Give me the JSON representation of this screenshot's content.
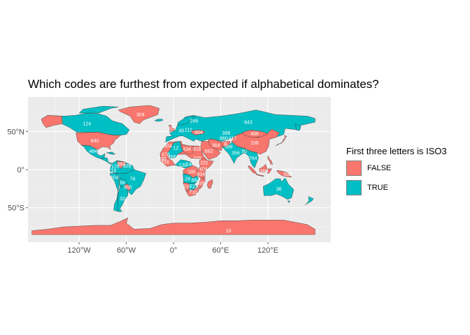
{
  "chart_data": {
    "type": "map",
    "title": "Which codes are furthest from expected if alphabetical dominates?",
    "xlabel": "",
    "ylabel": "",
    "x_ticks": [
      "120°W",
      "60°W",
      "0°",
      "60°E",
      "120°E"
    ],
    "x_tick_values": [
      -120,
      -60,
      0,
      60,
      120
    ],
    "y_ticks": [
      "50°N",
      "0°",
      "50°S"
    ],
    "y_tick_values": [
      50,
      0,
      -50
    ],
    "xlim": [
      -185,
      200
    ],
    "ylim": [
      -95,
      95
    ],
    "grid": true,
    "legend": {
      "title": "First three letters is ISO3",
      "position": "right",
      "entries": [
        {
          "label": "FALSE",
          "color": "#F8766D"
        },
        {
          "label": "TRUE",
          "color": "#00BFC4"
        }
      ]
    },
    "regions": [
      {
        "name": "Canada",
        "code": "124",
        "value": true,
        "lon": -110,
        "lat": 60
      },
      {
        "name": "Greenland",
        "code": "304",
        "value": false,
        "lon": -42,
        "lat": 72
      },
      {
        "name": "United States",
        "code": "840",
        "value": false,
        "lon": -100,
        "lat": 38
      },
      {
        "name": "Mexico",
        "code": "484",
        "value": true,
        "lon": -102,
        "lat": 24
      },
      {
        "name": "Venezuela",
        "code": "862",
        "value": false,
        "lon": -66,
        "lat": 7
      },
      {
        "name": "Colombia",
        "code": "170",
        "value": true,
        "lon": -74,
        "lat": 4
      },
      {
        "name": "Ecuador",
        "code": "218",
        "value": true,
        "lon": -78,
        "lat": -1
      },
      {
        "name": "Peru",
        "code": "604",
        "value": true,
        "lon": -75,
        "lat": -10
      },
      {
        "name": "Bolivia",
        "code": "68",
        "value": true,
        "lon": -65,
        "lat": -17
      },
      {
        "name": "Brazil",
        "code": "76",
        "value": true,
        "lon": -52,
        "lat": -12
      },
      {
        "name": "Paraguay",
        "code": "600",
        "value": false,
        "lon": -58,
        "lat": -23
      },
      {
        "name": "Guyana",
        "code": "328",
        "value": true,
        "lon": -59,
        "lat": 5
      },
      {
        "name": "Argentina",
        "code": "32",
        "value": true,
        "lon": -65,
        "lat": -38
      },
      {
        "name": "Russia",
        "code": "643",
        "value": true,
        "lon": 95,
        "lat": 62
      },
      {
        "name": "Finland",
        "code": "246",
        "value": true,
        "lon": 26,
        "lat": 64
      },
      {
        "name": "United Kingdom",
        "code": "826",
        "value": false,
        "lon": -2,
        "lat": 54
      },
      {
        "name": "Germany",
        "code": "40",
        "value": true,
        "lon": 10,
        "lat": 51
      },
      {
        "name": "Ukraine",
        "code": "804",
        "value": false,
        "lon": 32,
        "lat": 49
      },
      {
        "name": "Poland",
        "code": "112",
        "value": true,
        "lon": 19,
        "lat": 52
      },
      {
        "name": "Kazakhstan",
        "code": "398",
        "value": true,
        "lon": 67,
        "lat": 48
      },
      {
        "name": "Mongolia",
        "code": "496",
        "value": false,
        "lon": 103,
        "lat": 47
      },
      {
        "name": "China",
        "code": "156",
        "value": false,
        "lon": 103,
        "lat": 35
      },
      {
        "name": "Uzbekistan",
        "code": "860",
        "value": true,
        "lon": 64,
        "lat": 41
      },
      {
        "name": "Kyrgyzstan",
        "code": "417",
        "value": true,
        "lon": 75,
        "lat": 41
      },
      {
        "name": "Afghanistan",
        "code": "4",
        "value": false,
        "lon": 66,
        "lat": 34
      },
      {
        "name": "Iran",
        "code": "364",
        "value": false,
        "lon": 54,
        "lat": 32
      },
      {
        "name": "Saudi Arabia",
        "code": "682",
        "value": false,
        "lon": 45,
        "lat": 24
      },
      {
        "name": "Pakistan",
        "code": "586",
        "value": true,
        "lon": 70,
        "lat": 30
      },
      {
        "name": "India",
        "code": "356",
        "value": true,
        "lon": 79,
        "lat": 22
      },
      {
        "name": "Bangladesh",
        "code": "50",
        "value": true,
        "lon": 90,
        "lat": 24
      },
      {
        "name": "Thailand",
        "code": "764",
        "value": true,
        "lon": 101,
        "lat": 15
      },
      {
        "name": "Morocco",
        "code": "504",
        "value": false,
        "lon": -7,
        "lat": 31
      },
      {
        "name": "Algeria",
        "code": "12",
        "value": true,
        "lon": 3,
        "lat": 28
      },
      {
        "name": "Libya",
        "code": "434",
        "value": false,
        "lon": 17,
        "lat": 27
      },
      {
        "name": "Egypt",
        "code": "818",
        "value": false,
        "lon": 30,
        "lat": 27
      },
      {
        "name": "Mauritania",
        "code": "478",
        "value": false,
        "lon": -10,
        "lat": 20
      },
      {
        "name": "Mali",
        "code": "466",
        "value": true,
        "lon": -2,
        "lat": 17
      },
      {
        "name": "Senegal",
        "code": "686",
        "value": false,
        "lon": -14,
        "lat": 14
      },
      {
        "name": "Guinea",
        "code": "324",
        "value": false,
        "lon": -11,
        "lat": 10
      },
      {
        "name": "Sudan",
        "code": "729",
        "value": false,
        "lon": 30,
        "lat": 15
      },
      {
        "name": "Ethiopia",
        "code": "231",
        "value": false,
        "lon": 39,
        "lat": 9
      },
      {
        "name": "Cameroon",
        "code": "120",
        "value": true,
        "lon": 12,
        "lat": 6
      },
      {
        "name": "Central African Republic",
        "code": "140",
        "value": true,
        "lon": 21,
        "lat": 7
      },
      {
        "name": "DR Congo",
        "code": "180",
        "value": false,
        "lon": 23,
        "lat": -3
      },
      {
        "name": "Kenya",
        "code": "404",
        "value": false,
        "lon": 38,
        "lat": 1
      },
      {
        "name": "Tanzania",
        "code": "834",
        "value": false,
        "lon": 35,
        "lat": -6
      },
      {
        "name": "Angola",
        "code": "24",
        "value": true,
        "lon": 18,
        "lat": -12
      },
      {
        "name": "Zambia",
        "code": "894",
        "value": true,
        "lon": 28,
        "lat": -14
      },
      {
        "name": "Mozambique",
        "code": "508",
        "value": false,
        "lon": 35,
        "lat": -18
      },
      {
        "name": "Namibia",
        "code": "516",
        "value": false,
        "lon": 17,
        "lat": -22
      },
      {
        "name": "Botswana",
        "code": "72",
        "value": true,
        "lon": 24,
        "lat": -22
      },
      {
        "name": "South Africa",
        "code": "710",
        "value": false,
        "lon": 25,
        "lat": -30
      },
      {
        "name": "Indonesia",
        "code": "360",
        "value": false,
        "lon": 115,
        "lat": -2
      },
      {
        "name": "Papua New Guinea",
        "code": "598",
        "value": false,
        "lon": 145,
        "lat": -6
      },
      {
        "name": "Australia",
        "code": "36",
        "value": true,
        "lon": 134,
        "lat": -25
      },
      {
        "name": "Antarctica",
        "code": "10",
        "value": false,
        "lon": 70,
        "lat": -80
      }
    ]
  }
}
